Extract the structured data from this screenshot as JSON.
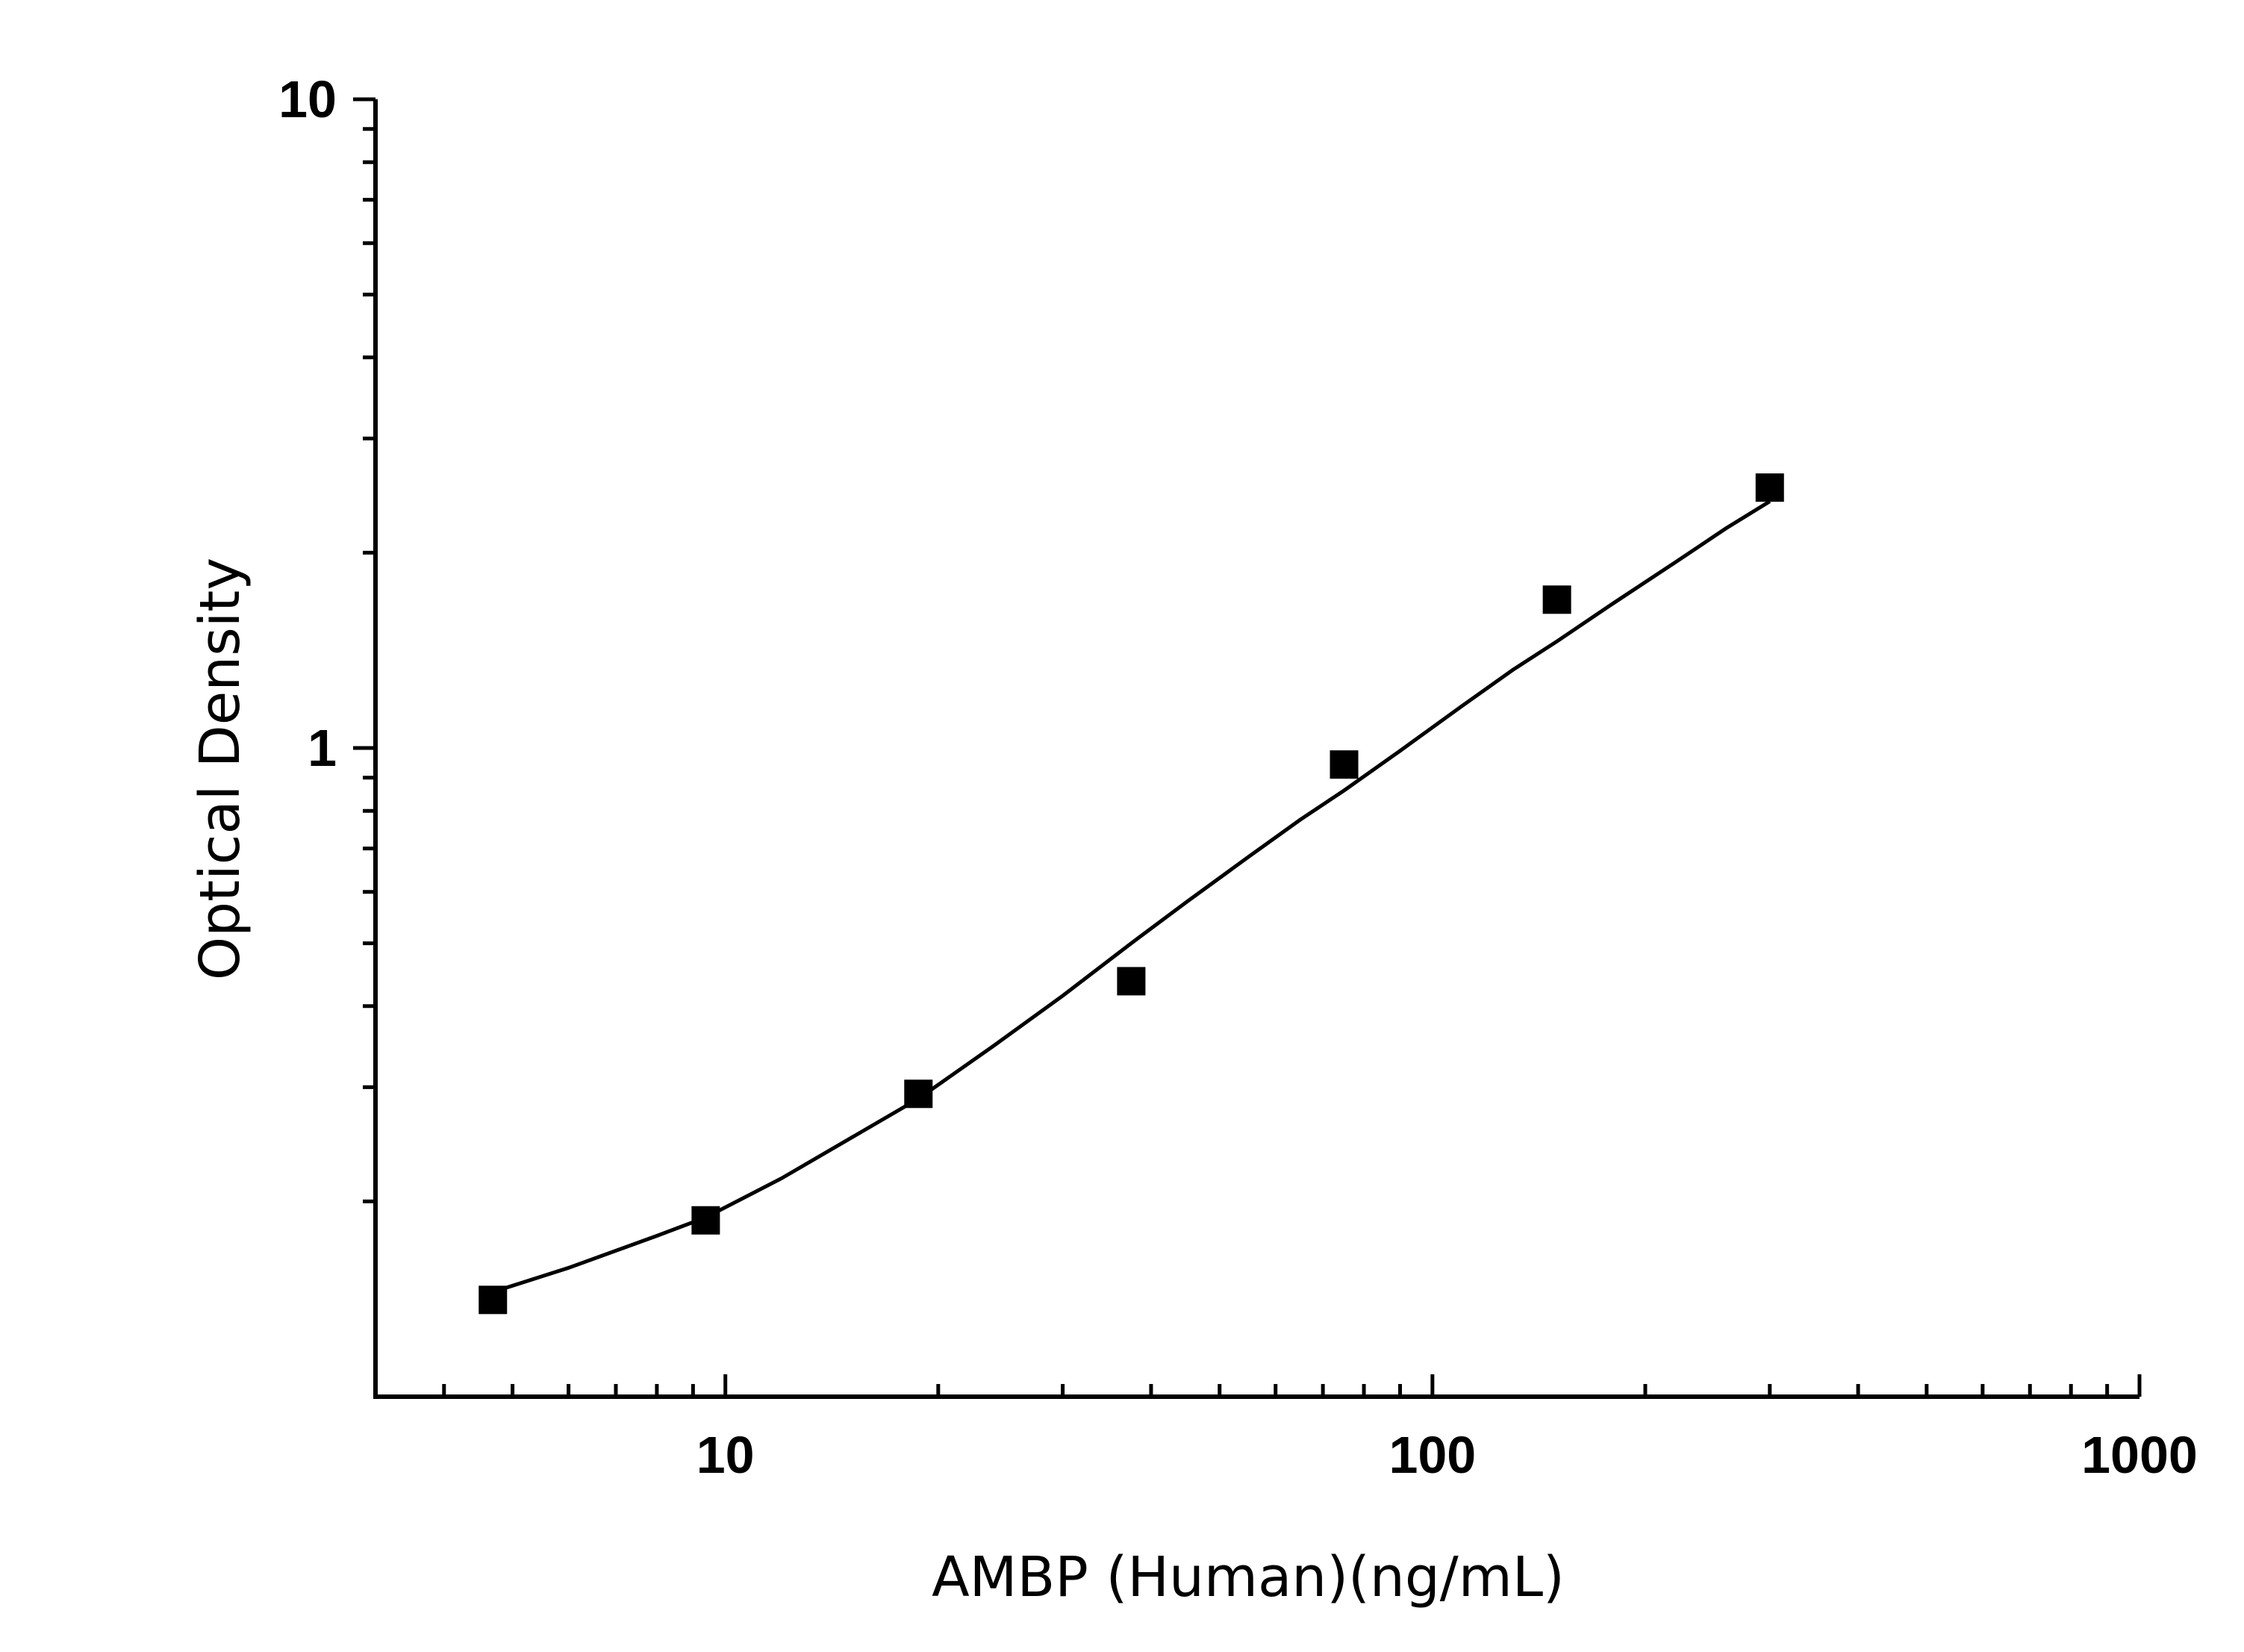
{
  "chart_data": {
    "type": "scatter",
    "xlabel": "AMBP (Human)(ng/mL)",
    "ylabel": "Optical Density",
    "xscale": "log",
    "yscale": "log",
    "xlim": [
      3.2,
      1000
    ],
    "ylim": [
      0.1,
      10
    ],
    "x_ticks": [
      10,
      100,
      1000
    ],
    "x_tick_labels": [
      "10",
      "100",
      "1000"
    ],
    "y_ticks": [
      1,
      10
    ],
    "y_tick_labels": [
      "1",
      "10"
    ],
    "grid": false,
    "legend": "none",
    "marker": "square",
    "color": "#000000",
    "series": [
      {
        "x": [
          4.69,
          9.38,
          18.75,
          37.5,
          75,
          150,
          300
        ],
        "y": [
          0.141,
          0.187,
          0.293,
          0.437,
          0.943,
          1.693,
          2.52
        ]
      }
    ],
    "fit_curve": {
      "x": [
        4.69,
        6,
        8,
        9.38,
        12,
        15,
        18.75,
        24,
        30,
        37.5,
        45,
        55,
        65,
        75,
        90,
        110,
        130,
        150,
        180,
        220,
        260,
        300
      ],
      "y": [
        0.145,
        0.158,
        0.177,
        0.189,
        0.217,
        0.25,
        0.288,
        0.348,
        0.415,
        0.5,
        0.58,
        0.68,
        0.775,
        0.86,
        0.99,
        1.16,
        1.32,
        1.46,
        1.67,
        1.93,
        2.18,
        2.4
      ]
    }
  }
}
